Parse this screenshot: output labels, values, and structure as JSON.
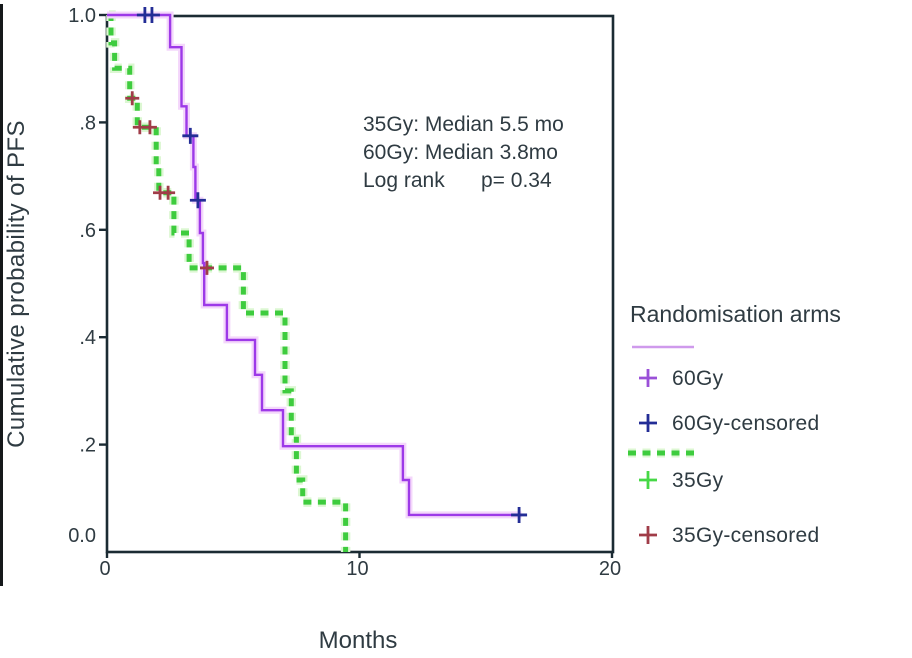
{
  "chart_data": {
    "type": "line",
    "subtype": "kaplan-meier-step",
    "title": "",
    "xlabel": "Months",
    "ylabel": "Cumulative probability of PFS",
    "xlim": [
      0,
      20
    ],
    "ylim": [
      0.0,
      1.0
    ],
    "grid": false,
    "x_ticks": [
      {
        "value": 0,
        "label": "0"
      },
      {
        "value": 10,
        "label": "10"
      },
      {
        "value": 20,
        "label": "20"
      }
    ],
    "y_ticks": [
      {
        "value": 0.0,
        "label": "0.0"
      },
      {
        "value": 0.2,
        "label": ".2"
      },
      {
        "value": 0.4,
        "label": ".4"
      },
      {
        "value": 0.6,
        "label": ".6"
      },
      {
        "value": 0.8,
        "label": ".8"
      },
      {
        "value": 1.0,
        "label": "1.0"
      }
    ],
    "annotation": {
      "line1": "35Gy: Median 5.5 mo",
      "line2": "60Gy: Median 3.8mo",
      "line3_label": "Log rank",
      "line3_value": "p= 0.34"
    },
    "legend": {
      "title": "Randomisation arms",
      "position": "right",
      "items": [
        {
          "label": "60Gy",
          "marker": "plus",
          "marker_color": "#9a50d8",
          "line": "solid",
          "line_color": "#cf9aec"
        },
        {
          "label": "60Gy-censored",
          "marker": "plus",
          "marker_color": "#232d96",
          "line": "none",
          "line_color": ""
        },
        {
          "label": "35Gy",
          "marker": "plus",
          "marker_color": "#46d846",
          "line": "dashed",
          "line_color": "#3ecc3e"
        },
        {
          "label": "35Gy-censored",
          "marker": "plus",
          "marker_color": "#a03c48",
          "line": "none",
          "line_color": ""
        }
      ]
    },
    "series": [
      {
        "name": "60Gy",
        "style": "solid",
        "color": "#9d39e8",
        "halo_color": "#f4d7fb",
        "censor_color": "#232d96",
        "points": [
          [
            0,
            1
          ],
          [
            2.5,
            1
          ],
          [
            2.5,
            0.94
          ],
          [
            2.95,
            0.94
          ],
          [
            2.95,
            0.83
          ],
          [
            3.15,
            0.83
          ],
          [
            3.15,
            0.775
          ],
          [
            3.42,
            0.775
          ],
          [
            3.42,
            0.717
          ],
          [
            3.5,
            0.717
          ],
          [
            3.5,
            0.655
          ],
          [
            3.68,
            0.655
          ],
          [
            3.68,
            0.594
          ],
          [
            3.8,
            0.594
          ],
          [
            3.8,
            0.538
          ],
          [
            3.85,
            0.538
          ],
          [
            3.85,
            0.46
          ],
          [
            4.75,
            0.46
          ],
          [
            4.75,
            0.395
          ],
          [
            5.86,
            0.395
          ],
          [
            5.86,
            0.33
          ],
          [
            6.14,
            0.33
          ],
          [
            6.14,
            0.264
          ],
          [
            6.97,
            0.264
          ],
          [
            6.97,
            0.197
          ],
          [
            11.72,
            0.197
          ],
          [
            11.72,
            0.134
          ],
          [
            11.96,
            0.134
          ],
          [
            11.96,
            0.069
          ],
          [
            16.42,
            0.069
          ]
        ],
        "censored": [
          [
            1.5,
            1
          ],
          [
            1.78,
            1
          ],
          [
            3.3,
            0.775
          ],
          [
            3.6,
            0.655
          ],
          [
            16.32,
            0.069
          ]
        ]
      },
      {
        "name": "35Gy",
        "style": "dashed",
        "color": "#3ecc3e",
        "halo_color": "#dcf7d2",
        "censor_color": "#a03c48",
        "points": [
          [
            0.08,
            1
          ],
          [
            0.16,
            1
          ],
          [
            0.16,
            0.948
          ],
          [
            0.3,
            0.948
          ],
          [
            0.3,
            0.901
          ],
          [
            0.9,
            0.901
          ],
          [
            0.9,
            0.845
          ],
          [
            1.2,
            0.845
          ],
          [
            1.2,
            0.791
          ],
          [
            1.95,
            0.791
          ],
          [
            1.95,
            0.72
          ],
          [
            2.05,
            0.72
          ],
          [
            2.05,
            0.669
          ],
          [
            2.65,
            0.669
          ],
          [
            2.65,
            0.594
          ],
          [
            3.25,
            0.594
          ],
          [
            3.25,
            0.529
          ],
          [
            5.4,
            0.529
          ],
          [
            5.4,
            0.445
          ],
          [
            7.05,
            0.445
          ],
          [
            7.05,
            0.3
          ],
          [
            7.3,
            0.3
          ],
          [
            7.3,
            0.21
          ],
          [
            7.5,
            0.21
          ],
          [
            7.5,
            0.134
          ],
          [
            7.75,
            0.134
          ],
          [
            7.75,
            0.093
          ],
          [
            9.45,
            0.093
          ],
          [
            9.45,
            0
          ]
        ],
        "censored": [
          [
            1.0,
            0.845
          ],
          [
            1.3,
            0.791
          ],
          [
            1.7,
            0.791
          ],
          [
            2.1,
            0.669
          ],
          [
            2.42,
            0.669
          ],
          [
            3.96,
            0.529
          ]
        ]
      }
    ],
    "colors": {
      "axis": "#1b2b33",
      "text": "#2f3b42"
    }
  }
}
